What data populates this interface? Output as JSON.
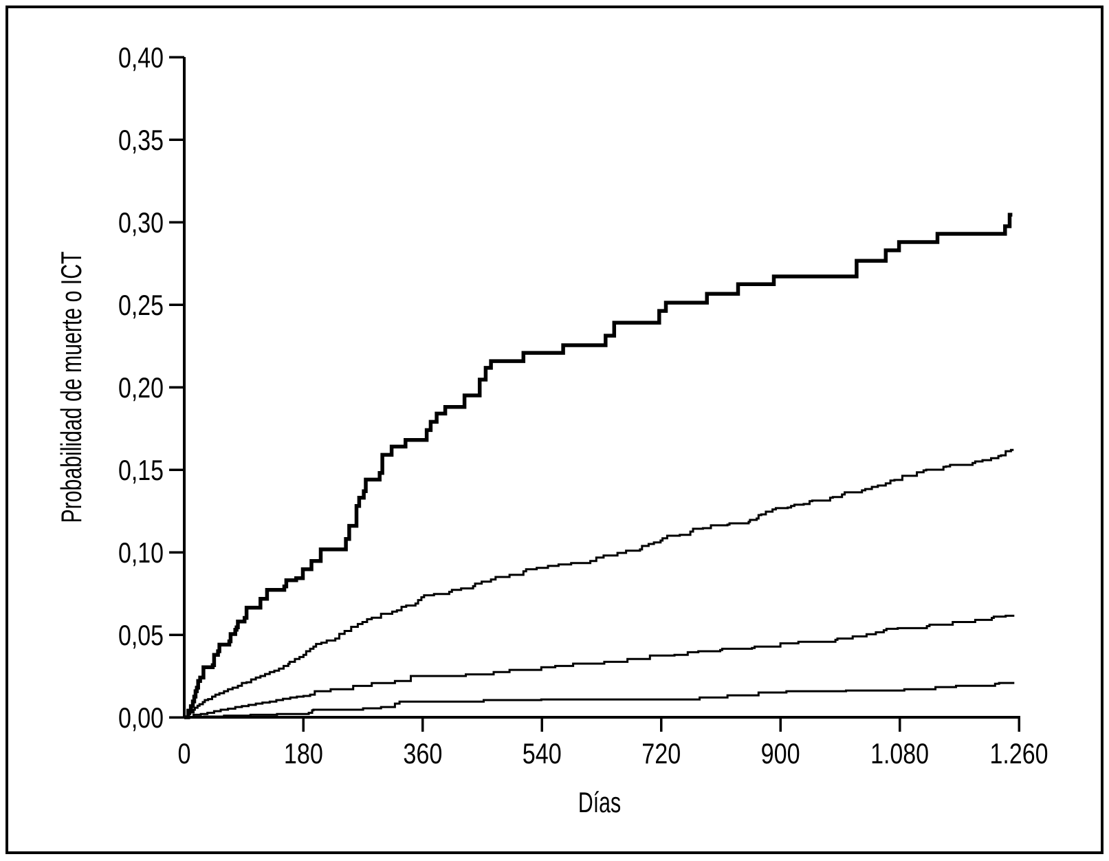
{
  "figure": {
    "background_color": "#ffffff",
    "frame_color": "#000000",
    "line_color": "#000000"
  },
  "chart_data": {
    "type": "line",
    "subtype": "step",
    "title": "",
    "xlabel": "Días",
    "ylabel": "Probabilidad de muerte o ICT",
    "xlim": [
      0,
      1260
    ],
    "ylim": [
      0.0,
      0.4
    ],
    "grid": false,
    "legend": null,
    "x_ticks": [
      {
        "value": 0,
        "label": "0",
        "tick_mark": false
      },
      {
        "value": 180,
        "label": "180",
        "tick_mark": true
      },
      {
        "value": 360,
        "label": "360",
        "tick_mark": true
      },
      {
        "value": 540,
        "label": "540",
        "tick_mark": true
      },
      {
        "value": 720,
        "label": "720",
        "tick_mark": true
      },
      {
        "value": 900,
        "label": "900",
        "tick_mark": true
      },
      {
        "value": 1080,
        "label": "1.080",
        "tick_mark": true
      },
      {
        "value": 1260,
        "label": "1.260",
        "tick_mark": true
      }
    ],
    "y_ticks": [
      {
        "value": 0.0,
        "label": "0,00"
      },
      {
        "value": 0.05,
        "label": "0,05"
      },
      {
        "value": 0.1,
        "label": "0,10"
      },
      {
        "value": 0.15,
        "label": "0,15"
      },
      {
        "value": 0.2,
        "label": "0,20"
      },
      {
        "value": 0.25,
        "label": "0,25"
      },
      {
        "value": 0.3,
        "label": "0,30"
      },
      {
        "value": 0.35,
        "label": "0,35"
      },
      {
        "value": 0.4,
        "label": "0,40"
      }
    ],
    "series": [
      {
        "name": "curva-1-gruesa",
        "color": "#000000",
        "stroke_width": 5.5,
        "points": [
          [
            0,
            0
          ],
          [
            6,
            0.004
          ],
          [
            10,
            0.0067
          ],
          [
            13,
            0.0096
          ],
          [
            15,
            0.0125
          ],
          [
            17,
            0.0158
          ],
          [
            19,
            0.0179
          ],
          [
            21,
            0.022
          ],
          [
            24,
            0.0241
          ],
          [
            29,
            0.0303
          ],
          [
            43,
            0.0316
          ],
          [
            45,
            0.0378
          ],
          [
            51,
            0.04
          ],
          [
            53,
            0.044
          ],
          [
            68,
            0.046
          ],
          [
            70,
            0.0504
          ],
          [
            77,
            0.053
          ],
          [
            79,
            0.0545
          ],
          [
            81,
            0.058
          ],
          [
            91,
            0.0602
          ],
          [
            94,
            0.0664
          ],
          [
            115,
            0.0718
          ],
          [
            125,
            0.0772
          ],
          [
            151,
            0.0793
          ],
          [
            154,
            0.083
          ],
          [
            169,
            0.0843
          ],
          [
            179,
            0.0897
          ],
          [
            192,
            0.0947
          ],
          [
            206,
            0.1017
          ],
          [
            244,
            0.108
          ],
          [
            249,
            0.116
          ],
          [
            260,
            0.128
          ],
          [
            264,
            0.133
          ],
          [
            271,
            0.137
          ],
          [
            274,
            0.144
          ],
          [
            295,
            0.148
          ],
          [
            299,
            0.159
          ],
          [
            313,
            0.164
          ],
          [
            334,
            0.168
          ],
          [
            366,
            0.174
          ],
          [
            372,
            0.179
          ],
          [
            381,
            0.184
          ],
          [
            394,
            0.188
          ],
          [
            423,
            0.195
          ],
          [
            446,
            0.2046
          ],
          [
            455,
            0.2117
          ],
          [
            463,
            0.2158
          ],
          [
            512,
            0.2208
          ],
          [
            572,
            0.2254
          ],
          [
            636,
            0.2312
          ],
          [
            649,
            0.2391
          ],
          [
            717,
            0.2462
          ],
          [
            727,
            0.2512
          ],
          [
            789,
            0.2566
          ],
          [
            836,
            0.2624
          ],
          [
            890,
            0.2671
          ],
          [
            1015,
            0.2766
          ],
          [
            1059,
            0.2829
          ],
          [
            1079,
            0.2879
          ],
          [
            1137,
            0.2929
          ],
          [
            1239,
            0.2975
          ],
          [
            1246,
            0.3045
          ],
          [
            1250,
            0.3045
          ]
        ]
      },
      {
        "name": "curva-2",
        "color": "#000000",
        "stroke_width": 3,
        "points": [
          [
            0,
            0
          ],
          [
            5,
            0.002
          ],
          [
            9,
            0.0029
          ],
          [
            14,
            0.0046
          ],
          [
            16,
            0.0058
          ],
          [
            20,
            0.007
          ],
          [
            23,
            0.0079
          ],
          [
            28,
            0.0092
          ],
          [
            31,
            0.0104
          ],
          [
            36,
            0.011
          ],
          [
            42,
            0.0125
          ],
          [
            47,
            0.0137
          ],
          [
            53,
            0.0146
          ],
          [
            60,
            0.0158
          ],
          [
            66,
            0.017
          ],
          [
            73,
            0.0179
          ],
          [
            81,
            0.0191
          ],
          [
            87,
            0.0208
          ],
          [
            94,
            0.0212
          ],
          [
            101,
            0.0229
          ],
          [
            108,
            0.0241
          ],
          [
            115,
            0.025
          ],
          [
            122,
            0.0262
          ],
          [
            129,
            0.0274
          ],
          [
            136,
            0.0282
          ],
          [
            143,
            0.0295
          ],
          [
            150,
            0.0311
          ],
          [
            157,
            0.0324
          ],
          [
            159,
            0.0336
          ],
          [
            167,
            0.0353
          ],
          [
            174,
            0.0365
          ],
          [
            180,
            0.0378
          ],
          [
            184,
            0.04
          ],
          [
            190,
            0.0415
          ],
          [
            195,
            0.0428
          ],
          [
            199,
            0.0444
          ],
          [
            207,
            0.0452
          ],
          [
            215,
            0.0465
          ],
          [
            228,
            0.0477
          ],
          [
            234,
            0.0505
          ],
          [
            242,
            0.0523
          ],
          [
            252,
            0.0548
          ],
          [
            262,
            0.0565
          ],
          [
            269,
            0.0577
          ],
          [
            276,
            0.0594
          ],
          [
            283,
            0.0603
          ],
          [
            297,
            0.0627
          ],
          [
            314,
            0.064
          ],
          [
            321,
            0.0648
          ],
          [
            328,
            0.0669
          ],
          [
            335,
            0.0677
          ],
          [
            349,
            0.0689
          ],
          [
            353,
            0.071
          ],
          [
            358,
            0.0727
          ],
          [
            362,
            0.0739
          ],
          [
            377,
            0.0747
          ],
          [
            400,
            0.076
          ],
          [
            404,
            0.0772
          ],
          [
            418,
            0.0781
          ],
          [
            436,
            0.0794
          ],
          [
            439,
            0.081
          ],
          [
            449,
            0.0822
          ],
          [
            463,
            0.0835
          ],
          [
            470,
            0.085
          ],
          [
            491,
            0.0863
          ],
          [
            512,
            0.0884
          ],
          [
            516,
            0.0897
          ],
          [
            532,
            0.0905
          ],
          [
            549,
            0.0917
          ],
          [
            565,
            0.0926
          ],
          [
            584,
            0.0934
          ],
          [
            613,
            0.0947
          ],
          [
            622,
            0.0968
          ],
          [
            633,
            0.098
          ],
          [
            654,
            0.0996
          ],
          [
            667,
            0.1009
          ],
          [
            688,
            0.1017
          ],
          [
            691,
            0.1038
          ],
          [
            701,
            0.105
          ],
          [
            709,
            0.1059
          ],
          [
            719,
            0.1071
          ],
          [
            722,
            0.1084
          ],
          [
            729,
            0.11
          ],
          [
            748,
            0.1105
          ],
          [
            764,
            0.1125
          ],
          [
            768,
            0.1142
          ],
          [
            783,
            0.1146
          ],
          [
            795,
            0.1163
          ],
          [
            820,
            0.1167
          ],
          [
            823,
            0.1175
          ],
          [
            852,
            0.1184
          ],
          [
            854,
            0.1196
          ],
          [
            864,
            0.1204
          ],
          [
            867,
            0.1225
          ],
          [
            871,
            0.1229
          ],
          [
            878,
            0.1246
          ],
          [
            888,
            0.1259
          ],
          [
            893,
            0.1267
          ],
          [
            911,
            0.1271
          ],
          [
            916,
            0.128
          ],
          [
            921,
            0.1288
          ],
          [
            935,
            0.1292
          ],
          [
            944,
            0.1309
          ],
          [
            948,
            0.1313
          ],
          [
            975,
            0.133
          ],
          [
            979,
            0.1334
          ],
          [
            993,
            0.135
          ],
          [
            997,
            0.1363
          ],
          [
            1023,
            0.1375
          ],
          [
            1028,
            0.1383
          ],
          [
            1038,
            0.1396
          ],
          [
            1047,
            0.1404
          ],
          [
            1059,
            0.1417
          ],
          [
            1066,
            0.1434
          ],
          [
            1072,
            0.1438
          ],
          [
            1084,
            0.1463
          ],
          [
            1106,
            0.1484
          ],
          [
            1116,
            0.1496
          ],
          [
            1120,
            0.15
          ],
          [
            1146,
            0.1517
          ],
          [
            1150,
            0.152
          ],
          [
            1156,
            0.1529
          ],
          [
            1190,
            0.1541
          ],
          [
            1194,
            0.155
          ],
          [
            1205,
            0.1558
          ],
          [
            1218,
            0.157
          ],
          [
            1229,
            0.1583
          ],
          [
            1233,
            0.1587
          ],
          [
            1240,
            0.1612
          ],
          [
            1248,
            0.162
          ],
          [
            1252,
            0.162
          ]
        ]
      },
      {
        "name": "curva-3",
        "color": "#000000",
        "stroke_width": 3,
        "points": [
          [
            0,
            0
          ],
          [
            14,
            0.0015
          ],
          [
            25,
            0.002
          ],
          [
            35,
            0.0027
          ],
          [
            45,
            0.0037
          ],
          [
            55,
            0.0046
          ],
          [
            66,
            0.0052
          ],
          [
            77,
            0.0062
          ],
          [
            87,
            0.0068
          ],
          [
            97,
            0.0075
          ],
          [
            108,
            0.0083
          ],
          [
            118,
            0.0089
          ],
          [
            129,
            0.0095
          ],
          [
            139,
            0.0104
          ],
          [
            149,
            0.0112
          ],
          [
            160,
            0.012
          ],
          [
            170,
            0.0125
          ],
          [
            180,
            0.0129
          ],
          [
            190,
            0.0137
          ],
          [
            197,
            0.0158
          ],
          [
            221,
            0.017
          ],
          [
            255,
            0.019
          ],
          [
            283,
            0.0207
          ],
          [
            318,
            0.022
          ],
          [
            342,
            0.025
          ],
          [
            425,
            0.026
          ],
          [
            467,
            0.0274
          ],
          [
            491,
            0.0287
          ],
          [
            539,
            0.0303
          ],
          [
            560,
            0.0311
          ],
          [
            587,
            0.0325
          ],
          [
            634,
            0.0336
          ],
          [
            669,
            0.0353
          ],
          [
            703,
            0.0374
          ],
          [
            740,
            0.0378
          ],
          [
            760,
            0.0394
          ],
          [
            776,
            0.04
          ],
          [
            809,
            0.0407
          ],
          [
            812,
            0.0415
          ],
          [
            857,
            0.042
          ],
          [
            861,
            0.0428
          ],
          [
            900,
            0.0448
          ],
          [
            927,
            0.0457
          ],
          [
            983,
            0.0469
          ],
          [
            986,
            0.0477
          ],
          [
            1009,
            0.049
          ],
          [
            1030,
            0.0503
          ],
          [
            1044,
            0.0515
          ],
          [
            1056,
            0.0527
          ],
          [
            1060,
            0.0536
          ],
          [
            1077,
            0.054
          ],
          [
            1121,
            0.0552
          ],
          [
            1125,
            0.0561
          ],
          [
            1160,
            0.0577
          ],
          [
            1194,
            0.059
          ],
          [
            1219,
            0.0602
          ],
          [
            1222,
            0.061
          ],
          [
            1240,
            0.0615
          ],
          [
            1253,
            0.0615
          ]
        ]
      },
      {
        "name": "curva-4",
        "color": "#000000",
        "stroke_width": 3,
        "points": [
          [
            0,
            0
          ],
          [
            30,
            0.0004
          ],
          [
            60,
            0.001
          ],
          [
            100,
            0.0015
          ],
          [
            140,
            0.002
          ],
          [
            188,
            0.0027
          ],
          [
            193,
            0.0042
          ],
          [
            195,
            0.0046
          ],
          [
            270,
            0.0054
          ],
          [
            297,
            0.0062
          ],
          [
            318,
            0.0083
          ],
          [
            325,
            0.0095
          ],
          [
            452,
            0.0104
          ],
          [
            539,
            0.0108
          ],
          [
            778,
            0.012
          ],
          [
            820,
            0.0133
          ],
          [
            867,
            0.015
          ],
          [
            909,
            0.0158
          ],
          [
            999,
            0.0162
          ],
          [
            1087,
            0.017
          ],
          [
            1134,
            0.0183
          ],
          [
            1165,
            0.0191
          ],
          [
            1224,
            0.0203
          ],
          [
            1230,
            0.0208
          ],
          [
            1253,
            0.0208
          ]
        ]
      }
    ]
  }
}
